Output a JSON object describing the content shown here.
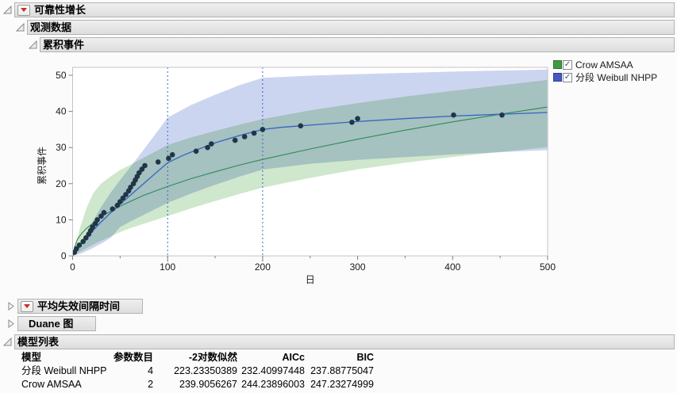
{
  "sections": {
    "reliability_growth": {
      "title": "可靠性增长",
      "state": "expanded"
    },
    "observed_data": {
      "title": "观测数据",
      "state": "expanded"
    },
    "cumulative_events": {
      "title": "累积事件",
      "state": "expanded"
    },
    "mtbf": {
      "title": "平均失效间隔时间",
      "state": "collapsed"
    },
    "duane": {
      "title": "Duane 图",
      "state": "collapsed"
    },
    "model_list": {
      "title": "模型列表",
      "state": "expanded"
    }
  },
  "legend": {
    "items": [
      {
        "label": "Crow AMSAA",
        "color": "#3f9b41",
        "checked": true
      },
      {
        "label": "分段 Weibull NHPP",
        "color": "#4459c4",
        "checked": true
      }
    ]
  },
  "chart_data": {
    "type": "scatter",
    "title": "累积事件",
    "xlabel": "日",
    "ylabel": "累积事件",
    "xlim": [
      0,
      500
    ],
    "ylim": [
      0,
      52
    ],
    "x_ticks": [
      0,
      100,
      200,
      300,
      400,
      500
    ],
    "x_minor_ticks": [
      50,
      150,
      250,
      350,
      450
    ],
    "y_ticks": [
      0,
      10,
      20,
      30,
      40,
      50
    ],
    "change_points_x": [
      100,
      200
    ],
    "observed_points": [
      [
        2,
        1
      ],
      [
        4,
        2
      ],
      [
        7,
        3
      ],
      [
        11,
        4
      ],
      [
        14,
        5
      ],
      [
        17,
        6
      ],
      [
        19,
        7
      ],
      [
        21,
        8
      ],
      [
        24,
        9
      ],
      [
        26,
        10
      ],
      [
        30,
        11
      ],
      [
        33,
        12
      ],
      [
        42,
        13
      ],
      [
        47,
        14
      ],
      [
        50,
        15
      ],
      [
        53,
        16
      ],
      [
        56,
        17
      ],
      [
        59,
        18
      ],
      [
        61,
        19
      ],
      [
        64,
        20
      ],
      [
        66,
        21
      ],
      [
        68,
        22
      ],
      [
        70,
        23
      ],
      [
        73,
        24
      ],
      [
        76,
        25
      ],
      [
        90,
        26
      ],
      [
        101,
        27
      ],
      [
        105,
        28
      ],
      [
        130,
        29
      ],
      [
        142,
        30
      ],
      [
        146,
        31
      ],
      [
        171,
        32
      ],
      [
        181,
        33
      ],
      [
        191,
        34
      ],
      [
        200,
        35
      ],
      [
        240,
        36
      ],
      [
        294,
        37
      ],
      [
        300,
        38
      ],
      [
        401,
        39
      ],
      [
        452,
        39
      ]
    ],
    "series": [
      {
        "name": "Crow AMSAA",
        "line_color": "#2f8a57",
        "band_color": "#cfe7cc",
        "line": [
          [
            0,
            0
          ],
          [
            2,
            2.4
          ],
          [
            5,
            4.6
          ],
          [
            10,
            6.4
          ],
          [
            15,
            7.7
          ],
          [
            25,
            9.9
          ],
          [
            35,
            11.6
          ],
          [
            50,
            13.8
          ],
          [
            65,
            15.6
          ],
          [
            75,
            16.8
          ],
          [
            100,
            19.2
          ],
          [
            125,
            21.4
          ],
          [
            150,
            23.3
          ],
          [
            175,
            25.1
          ],
          [
            200,
            26.7
          ],
          [
            250,
            29.6
          ],
          [
            300,
            32.3
          ],
          [
            350,
            34.8
          ],
          [
            400,
            37.1
          ],
          [
            450,
            39.2
          ],
          [
            500,
            41.2
          ]
        ],
        "band_top": [
          [
            0,
            0
          ],
          [
            3,
            3
          ],
          [
            8,
            8
          ],
          [
            15,
            13.5
          ],
          [
            22,
            17.5
          ],
          [
            30,
            20
          ],
          [
            40,
            22
          ],
          [
            50,
            23.8
          ],
          [
            62,
            25.4
          ],
          [
            75,
            27.2
          ],
          [
            88,
            29
          ],
          [
            100,
            30.7
          ],
          [
            125,
            32.8
          ],
          [
            150,
            34.6
          ],
          [
            175,
            36.3
          ],
          [
            200,
            37.9
          ],
          [
            250,
            40.3
          ],
          [
            300,
            42.3
          ],
          [
            350,
            44.1
          ],
          [
            400,
            45.7
          ],
          [
            450,
            47.2
          ],
          [
            500,
            48.7
          ]
        ],
        "band_bottom": [
          [
            0,
            0
          ],
          [
            10,
            1.5
          ],
          [
            20,
            2.9
          ],
          [
            30,
            4.2
          ],
          [
            40,
            5.4
          ],
          [
            50,
            6.6
          ],
          [
            62,
            7.8
          ],
          [
            75,
            8.9
          ],
          [
            88,
            10
          ],
          [
            100,
            11
          ],
          [
            125,
            13.2
          ],
          [
            150,
            15.2
          ],
          [
            175,
            17.1
          ],
          [
            200,
            18.9
          ],
          [
            250,
            21.6
          ],
          [
            300,
            24
          ],
          [
            350,
            25.8
          ],
          [
            400,
            27.4
          ],
          [
            450,
            28.8
          ],
          [
            500,
            30.1
          ]
        ]
      },
      {
        "name": "分段 Weibull NHPP",
        "line_color": "#3563c0",
        "band_color": "#ccd5f0",
        "line": [
          [
            0,
            0
          ],
          [
            5,
            1.8
          ],
          [
            10,
            3.6
          ],
          [
            20,
            6.6
          ],
          [
            30,
            9.4
          ],
          [
            40,
            11.9
          ],
          [
            50,
            14.3
          ],
          [
            60,
            16.6
          ],
          [
            70,
            18.9
          ],
          [
            80,
            21.2
          ],
          [
            90,
            23.5
          ],
          [
            100,
            25.8
          ],
          [
            115,
            27.7
          ],
          [
            130,
            29.3
          ],
          [
            150,
            31.3
          ],
          [
            175,
            33.3
          ],
          [
            200,
            35
          ],
          [
            220,
            35.6
          ],
          [
            250,
            36.2
          ],
          [
            300,
            37.2
          ],
          [
            350,
            38
          ],
          [
            400,
            38.7
          ],
          [
            450,
            39.2
          ],
          [
            500,
            39.7
          ]
        ],
        "band_top": [
          [
            0,
            0
          ],
          [
            10,
            4
          ],
          [
            20,
            9
          ],
          [
            30,
            13.5
          ],
          [
            40,
            17.5
          ],
          [
            50,
            21
          ],
          [
            62,
            25
          ],
          [
            75,
            29.5
          ],
          [
            88,
            34
          ],
          [
            100,
            38.3
          ],
          [
            125,
            41.8
          ],
          [
            150,
            44.6
          ],
          [
            175,
            47.2
          ],
          [
            200,
            49.3
          ],
          [
            250,
            49.9
          ],
          [
            300,
            50.3
          ],
          [
            400,
            51
          ],
          [
            500,
            51.6
          ]
        ],
        "band_bottom": [
          [
            0,
            0
          ],
          [
            10,
            0.8
          ],
          [
            20,
            2
          ],
          [
            30,
            3.4
          ],
          [
            40,
            5
          ],
          [
            50,
            8
          ],
          [
            62,
            9.7
          ],
          [
            75,
            11.4
          ],
          [
            88,
            13.1
          ],
          [
            100,
            14.7
          ],
          [
            125,
            17.3
          ],
          [
            150,
            19.7
          ],
          [
            175,
            21.9
          ],
          [
            200,
            23.9
          ],
          [
            250,
            25.5
          ],
          [
            300,
            26.6
          ],
          [
            400,
            28.1
          ],
          [
            500,
            29.3
          ]
        ]
      }
    ],
    "colors": {
      "points": "#203647",
      "change_point_line": "#3566cc",
      "frame": "#c4c4c4",
      "tick": "#808080",
      "tick_label": "#1a1a1a"
    }
  },
  "model_table": {
    "columns": [
      "模型",
      "参数数目",
      "-2对数似然",
      "AICc",
      "BIC"
    ],
    "rows": [
      {
        "model": "分段 Weibull NHPP",
        "n_params": "4",
        "neg2_loglik": "223.23350389",
        "aicc": "232.40997448",
        "bic": "237.88775047"
      },
      {
        "model": "Crow AMSAA",
        "n_params": "2",
        "neg2_loglik": "239.9056267",
        "aicc": "244.23896003",
        "bic": "247.23274999"
      }
    ]
  }
}
